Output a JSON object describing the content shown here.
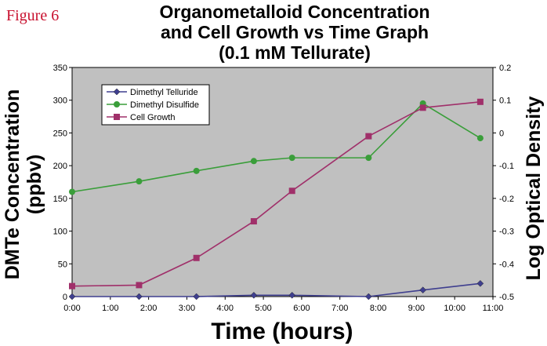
{
  "figure_label": "Figure 6",
  "chart_data": {
    "type": "line",
    "title": [
      "Organometalloid Concentration",
      "and Cell Growth vs Time Graph",
      "(0.1 mM Tellurate)"
    ],
    "xlabel": "Time (hours)",
    "ylabel": [
      "DMTe Concentration",
      "(ppbv)"
    ],
    "y2label": "Log Optical Density",
    "xlim": [
      0,
      11
    ],
    "ylim": [
      0,
      350
    ],
    "y2lim": [
      -0.5,
      0.2
    ],
    "x_ticks": [
      "0:00",
      "1:00",
      "2:00",
      "3:00",
      "4:00",
      "5:00",
      "6:00",
      "7:00",
      "8:00",
      "9:00",
      "10:00",
      "11:00"
    ],
    "y_ticks": [
      "0",
      "50",
      "100",
      "150",
      "200",
      "250",
      "300",
      "350"
    ],
    "y2_ticks": [
      "-0.5",
      "-0.4",
      "-0.3",
      "-0.2",
      "-0.1",
      "0",
      "0.1",
      "0.2"
    ],
    "grid": false,
    "plot_background": "#c0c0c0",
    "legend_position": "top-left",
    "series": [
      {
        "name": "Dimethyl Telluride",
        "axis": "left",
        "color": "#3f3f8f",
        "marker": "diamond",
        "x": [
          0,
          1.75,
          3.25,
          4.75,
          5.75,
          7.75,
          9.17,
          10.67
        ],
        "y": [
          0,
          0,
          0,
          2,
          2,
          0,
          10,
          20
        ]
      },
      {
        "name": "Dimethyl Disulfide",
        "axis": "left",
        "color": "#3a9e3a",
        "marker": "circle",
        "x": [
          0,
          1.75,
          3.25,
          4.75,
          5.75,
          7.75,
          9.17,
          10.67
        ],
        "y": [
          160,
          176,
          192,
          207,
          212,
          212,
          295,
          242
        ]
      },
      {
        "name": "Cell Growth",
        "axis": "right",
        "color": "#a0306a",
        "marker": "square",
        "x": [
          0,
          1.75,
          3.25,
          4.75,
          5.75,
          7.75,
          9.17,
          10.67
        ],
        "y": [
          -0.468,
          -0.465,
          -0.382,
          -0.27,
          -0.177,
          -0.01,
          0.077,
          0.095
        ]
      }
    ]
  }
}
